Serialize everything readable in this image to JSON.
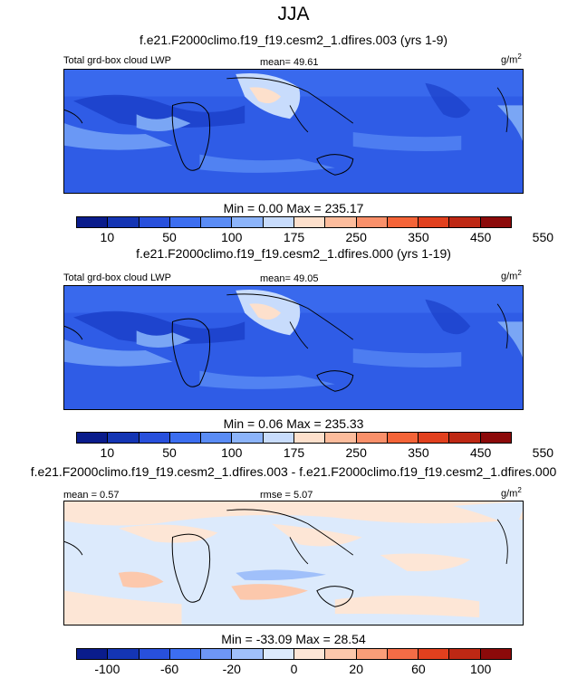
{
  "season": "JJA",
  "panels": [
    {
      "title": "f.e21.F2000climo.f19_f19.cesm2_1.dfires.003 (yrs 1-9)",
      "left_label": "Total grd-box cloud LWP",
      "mean_label": "mean=  49.61",
      "unit_base": "g/m",
      "unit_exp": "2",
      "minmax": "Min =   0.00 Max = 235.17"
    },
    {
      "title": "f.e21.F2000climo.f19_f19.cesm2_1.dfires.000 (yrs 1-19)",
      "left_label": "Total grd-box cloud LWP",
      "mean_label": "mean=  49.05",
      "unit_base": "g/m",
      "unit_exp": "2",
      "minmax": "Min =   0.06 Max = 235.33"
    },
    {
      "title": "f.e21.F2000climo.f19_f19.cesm2_1.dfires.003 - f.e21.F2000climo.f19_f19.cesm2_1.dfires.000",
      "left_label": "mean =   0.57",
      "mean_label": "rmse =   5.07",
      "unit_base": "g/m",
      "unit_exp": "2",
      "minmax": "Min = -33.09 Max =  28.54"
    }
  ],
  "colorbars": {
    "abs_colors": [
      "#0a1c8c",
      "#1435b4",
      "#2850dc",
      "#3c6ef0",
      "#5a8cf5",
      "#8cb4fa",
      "#c8dcfc",
      "#fde0cc",
      "#fcbc9c",
      "#f9906a",
      "#f46438",
      "#e1401e",
      "#be2814",
      "#8c0a0a"
    ],
    "abs_ticks": [
      "10",
      "50",
      "100",
      "175",
      "250",
      "350",
      "450",
      "550"
    ],
    "diff_colors": [
      "#0a1c8c",
      "#1435b4",
      "#2850dc",
      "#3c6ef0",
      "#6e96f5",
      "#a0c0fa",
      "#dceafc",
      "#fde6d6",
      "#fcc8ac",
      "#f99e78",
      "#f46c46",
      "#e1401e",
      "#be2814",
      "#8c0a0a"
    ],
    "diff_ticks": [
      "-100",
      "-60",
      "-20",
      "0",
      "20",
      "60",
      "100"
    ]
  }
}
